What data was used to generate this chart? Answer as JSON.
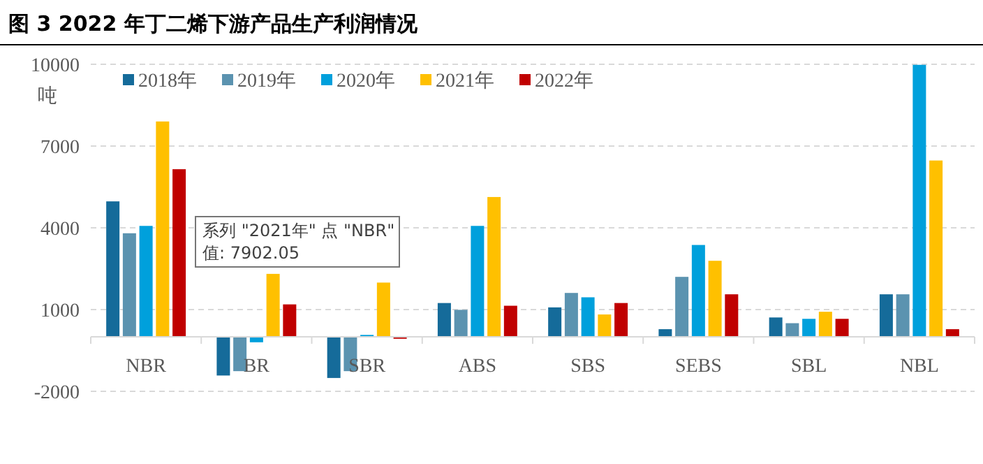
{
  "chart_data": {
    "type": "bar",
    "title": "图 3 2022 年丁二烯下游产品生产利润情况",
    "ylabel": "吨",
    "categories": [
      "NBR",
      "BR",
      "SBR",
      "ABS",
      "SBS",
      "SEBS",
      "SBL",
      "NBL"
    ],
    "series": [
      {
        "name": "2018年",
        "color": "#156b9a",
        "values": [
          4970,
          -1420,
          -1510,
          1240,
          1080,
          280,
          710,
          1560
        ]
      },
      {
        "name": "2019年",
        "color": "#5b93b0",
        "values": [
          3800,
          -1260,
          -1260,
          990,
          1610,
          2200,
          500,
          1560
        ]
      },
      {
        "name": "2020年",
        "color": "#00a0dc",
        "values": [
          4070,
          -200,
          70,
          4070,
          1450,
          3370,
          660,
          9980
        ]
      },
      {
        "name": "2021年",
        "color": "#ffc000",
        "values": [
          7902.05,
          2310,
          1990,
          5130,
          820,
          2790,
          920,
          6470
        ]
      },
      {
        "name": "2022年",
        "color": "#c00000",
        "values": [
          6150,
          1190,
          -70,
          1140,
          1240,
          1560,
          660,
          280
        ]
      }
    ],
    "ylim": [
      -2000,
      10000
    ],
    "yticks": [
      -2000,
      1000,
      4000,
      7000,
      10000
    ],
    "grid": "y",
    "legend": "top",
    "annotations": [
      "系列 \"2021年\" 点 \"NBR\"",
      "值: 7902.05"
    ]
  }
}
